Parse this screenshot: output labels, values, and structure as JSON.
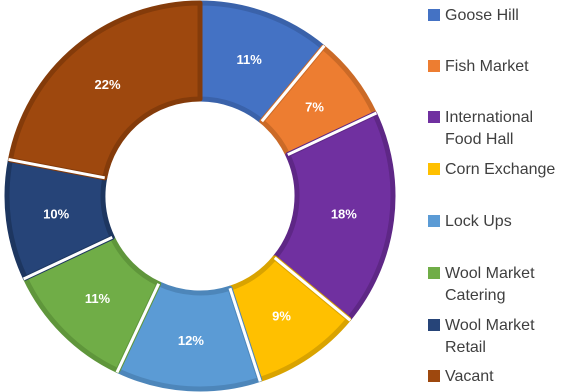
{
  "chart_data": {
    "type": "pie",
    "donut": true,
    "title": "",
    "legend_position": "right",
    "series": [
      {
        "name": "Goose Hill",
        "value": 11,
        "label": "11%",
        "color": "#4472C4",
        "edge": "#3A62AA"
      },
      {
        "name": "Fish Market",
        "value": 7,
        "label": "7%",
        "color": "#ED7D31",
        "edge": "#CB6A27"
      },
      {
        "name": "International\nFood Hall",
        "value": 18,
        "label": "18%",
        "color": "#7030A0",
        "edge": "#5E2786"
      },
      {
        "name": "Corn Exchange",
        "value": 9,
        "label": "9%",
        "color": "#FFC000",
        "edge": "#D9A300"
      },
      {
        "name": "Lock Ups",
        "value": 12,
        "label": "12%",
        "color": "#5B9BD5",
        "edge": "#4D86BA"
      },
      {
        "name": "Wool Market\nCatering",
        "value": 11,
        "label": "11%",
        "color": "#70AD47",
        "edge": "#5F963B"
      },
      {
        "name": "Wool Market\nRetail",
        "value": 10,
        "label": "10%",
        "color": "#264478",
        "edge": "#1D3660"
      },
      {
        "name": "Vacant",
        "value": 22,
        "label": "22%",
        "color": "#9E480E",
        "edge": "#843B0A"
      }
    ]
  }
}
